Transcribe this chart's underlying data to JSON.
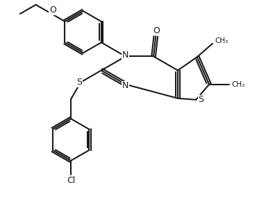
{
  "bg_color": "#ffffff",
  "line_color": "#1a1a1a",
  "line_width": 1.5,
  "figsize": [
    3.83,
    3.16
  ],
  "dpi": 100,
  "xlim": [
    0,
    9.5
  ],
  "ylim": [
    0,
    7.8
  ]
}
